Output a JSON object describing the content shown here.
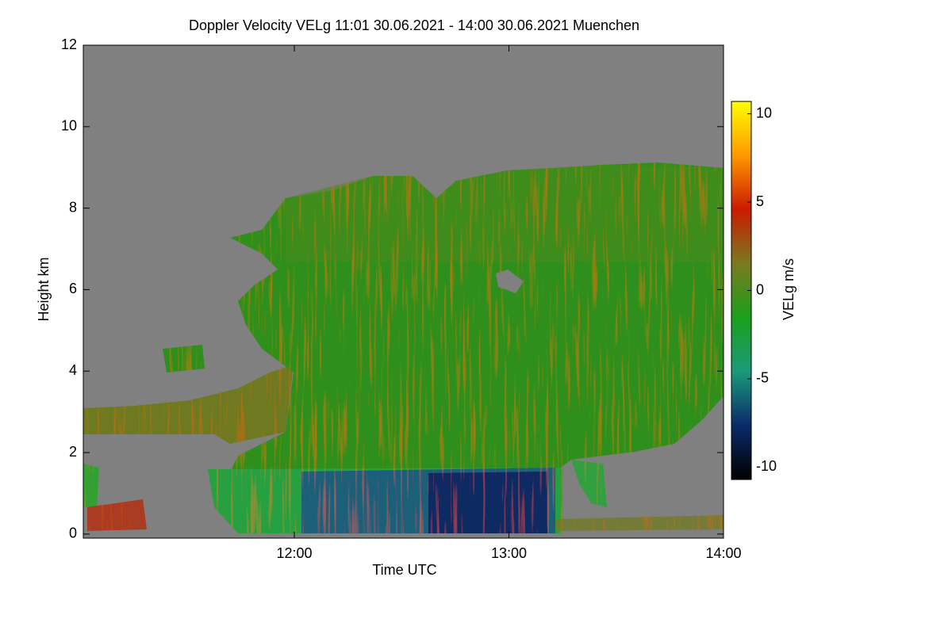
{
  "chart_data": {
    "type": "heatmap",
    "title": "Doppler Velocity VELg   11:01 30.06.2021 - 14:00 30.06.2021 Muenchen",
    "x_label": "Time UTC",
    "y_label": "Height km",
    "colorbar_label": "VELg m/s",
    "xlim": [
      11.0167,
      14.0
    ],
    "xticks": [
      {
        "value": 12,
        "label": "12:00"
      },
      {
        "value": 13,
        "label": "13:00"
      },
      {
        "value": 14,
        "label": "14:00"
      }
    ],
    "ylim": [
      -0.1,
      12.0
    ],
    "yticks": [
      0,
      2,
      4,
      6,
      8,
      10,
      12
    ],
    "clim": [
      -10.7,
      10.7
    ],
    "cticks": [
      -10,
      -5,
      0,
      5,
      10
    ],
    "colormap": [
      "#000000",
      "#0a2a6a",
      "#1a9a7a",
      "#1aa01a",
      "#7a7a20",
      "#cc1a00",
      "#ff9900",
      "#ffff00"
    ],
    "missing_color": "#808080"
  }
}
